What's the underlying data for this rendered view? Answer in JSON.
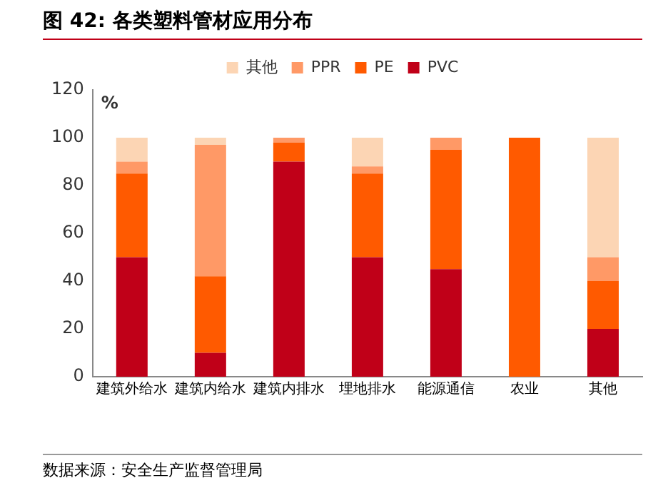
{
  "chart_data": {
    "type": "bar",
    "title": "图 42: 各类塑料管材应用分布",
    "ylabel": "%",
    "stacked": true,
    "legend": "top",
    "grid": false,
    "categories": [
      "建筑外给水",
      "建筑内给水",
      "建筑内排水",
      "埋地排水",
      "能源通信",
      "农业",
      "其他"
    ],
    "series": [
      {
        "name": "PVC",
        "color": "#c00018",
        "values": [
          50,
          10,
          90,
          50,
          45,
          0,
          20
        ]
      },
      {
        "name": "PE",
        "color": "#ff5a00",
        "values": [
          35,
          32,
          8,
          35,
          50,
          100,
          20
        ]
      },
      {
        "name": "PPR",
        "color": "#ff9966",
        "values": [
          5,
          55,
          2,
          3,
          5,
          0,
          10
        ]
      },
      {
        "name": "其他",
        "color": "#fcd5b4",
        "values": [
          10,
          3,
          0,
          12,
          0,
          0,
          50
        ]
      }
    ],
    "ylim": [
      0,
      120
    ],
    "yticks": [
      0,
      20,
      40,
      60,
      80,
      100,
      120
    ],
    "annotations": [
      "数据来源：安全生产监督管理局"
    ]
  }
}
